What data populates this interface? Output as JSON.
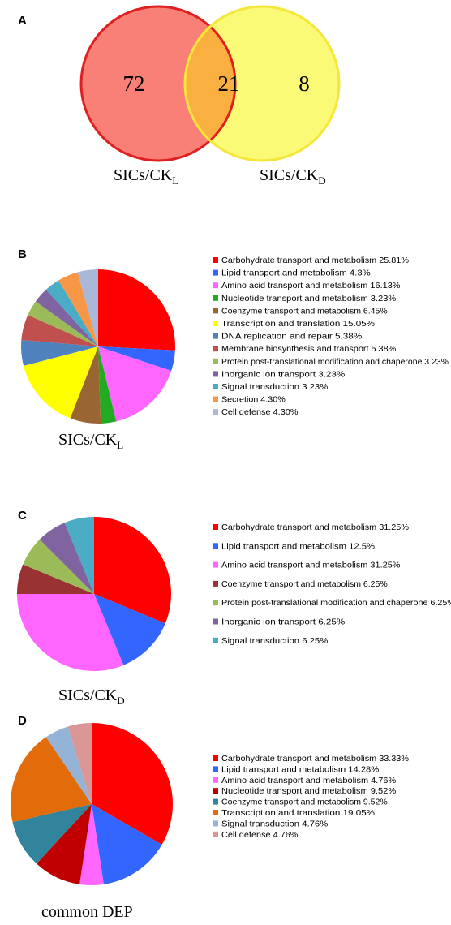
{
  "panels": {
    "a": {
      "letter": "A"
    },
    "b": {
      "letter": "B"
    },
    "c": {
      "letter": "C"
    },
    "d": {
      "letter": "D"
    }
  },
  "chart_data": [
    {
      "type": "venn",
      "sets": [
        {
          "label_main": "SICs/CK",
          "label_sub": "L",
          "only": "72",
          "color": "#f98076",
          "stroke": "#e02020"
        },
        {
          "label_main": "SICs/CK",
          "label_sub": "D",
          "only": "8",
          "color": "#fbfa76",
          "stroke": "#f5e63a"
        }
      ],
      "intersection": "21",
      "intersection_color": "#f9b040"
    },
    {
      "type": "pie",
      "label_main": "SICs/CK",
      "label_sub": "L",
      "slices": [
        {
          "label": "Carbohydrate transport and metabolism 25.81%",
          "value": 25.81,
          "color": "#ff0000"
        },
        {
          "label": "Lipid transport and metabolism 4.3%",
          "value": 4.3,
          "color": "#3366ff"
        },
        {
          "label": "Amino acid transport and metabolism 16.13%",
          "value": 16.13,
          "color": "#ff66ff"
        },
        {
          "label": "Nucleotide transport and metabolism 3.23%",
          "value": 3.23,
          "color": "#22aa22"
        },
        {
          "label": "Coenzyme transport and metabolism 6.45%",
          "value": 6.45,
          "color": "#996633"
        },
        {
          "label": "Transcription and translation 15.05%",
          "value": 15.05,
          "color": "#ffff00"
        },
        {
          "label": "DNA  replication and repair 5.38%",
          "value": 5.38,
          "color": "#4f81bd"
        },
        {
          "label": "Membrane biosynthesis and transport 5.38%",
          "value": 5.38,
          "color": "#c0504d"
        },
        {
          "label": "Protein post-translational modification and chaperone 3.23%",
          "value": 3.23,
          "color": "#9bbb59"
        },
        {
          "label": "Inorganic ion transport 3.23%",
          "value": 3.23,
          "color": "#8064a2"
        },
        {
          "label": "Signal transduction 3.23%",
          "value": 3.23,
          "color": "#4bacc6"
        },
        {
          "label": "Secretion 4.30%",
          "value": 4.3,
          "color": "#f79646"
        },
        {
          "label": "Cell defense 4.30%",
          "value": 4.3,
          "color": "#a9b8d8"
        }
      ]
    },
    {
      "type": "pie",
      "label_main": "SICs/CK",
      "label_sub": "D",
      "slices": [
        {
          "label": "Carbohydrate transport and metabolism 31.25%",
          "value": 31.25,
          "color": "#ff0000"
        },
        {
          "label": "Lipid transport and metabolism 12.5%",
          "value": 12.5,
          "color": "#3366ff"
        },
        {
          "label": "Amino acid transport and metabolism 31.25%",
          "value": 31.25,
          "color": "#ff66ff"
        },
        {
          "label": "Coenzyme transport and metabolism 6.25%",
          "value": 6.25,
          "color": "#993333"
        },
        {
          "label": "Protein post-translational modification and chaperone 6.25%",
          "value": 6.25,
          "color": "#9bbb59"
        },
        {
          "label": "Inorganic ion transport 6.25%",
          "value": 6.25,
          "color": "#8064a2"
        },
        {
          "label": "Signal transduction 6.25%",
          "value": 6.25,
          "color": "#4bacc6"
        }
      ]
    },
    {
      "type": "pie",
      "label_main": "common DEP",
      "label_sub": "",
      "slices": [
        {
          "label": "Carbohydrate transport and metabolism 33.33%",
          "value": 33.33,
          "color": "#ff0000"
        },
        {
          "label": "Lipid transport and metabolism 14.28%",
          "value": 14.28,
          "color": "#3366ff"
        },
        {
          "label": "Amino acid transport and metabolism 4.76%",
          "value": 4.76,
          "color": "#ff66ff"
        },
        {
          "label": "Nucleotide transport and metabolism 9.52%",
          "value": 9.52,
          "color": "#c00000"
        },
        {
          "label": "Coenzyme transport and metabolism 9.52%",
          "value": 9.52,
          "color": "#31849b"
        },
        {
          "label": "Transcription and translation 19.05%",
          "value": 19.05,
          "color": "#e26b0a"
        },
        {
          "label": "Signal transduction 4.76%",
          "value": 4.76,
          "color": "#95b3d7"
        },
        {
          "label": "Cell defense 4.76%",
          "value": 4.76,
          "color": "#da9694"
        }
      ]
    }
  ]
}
